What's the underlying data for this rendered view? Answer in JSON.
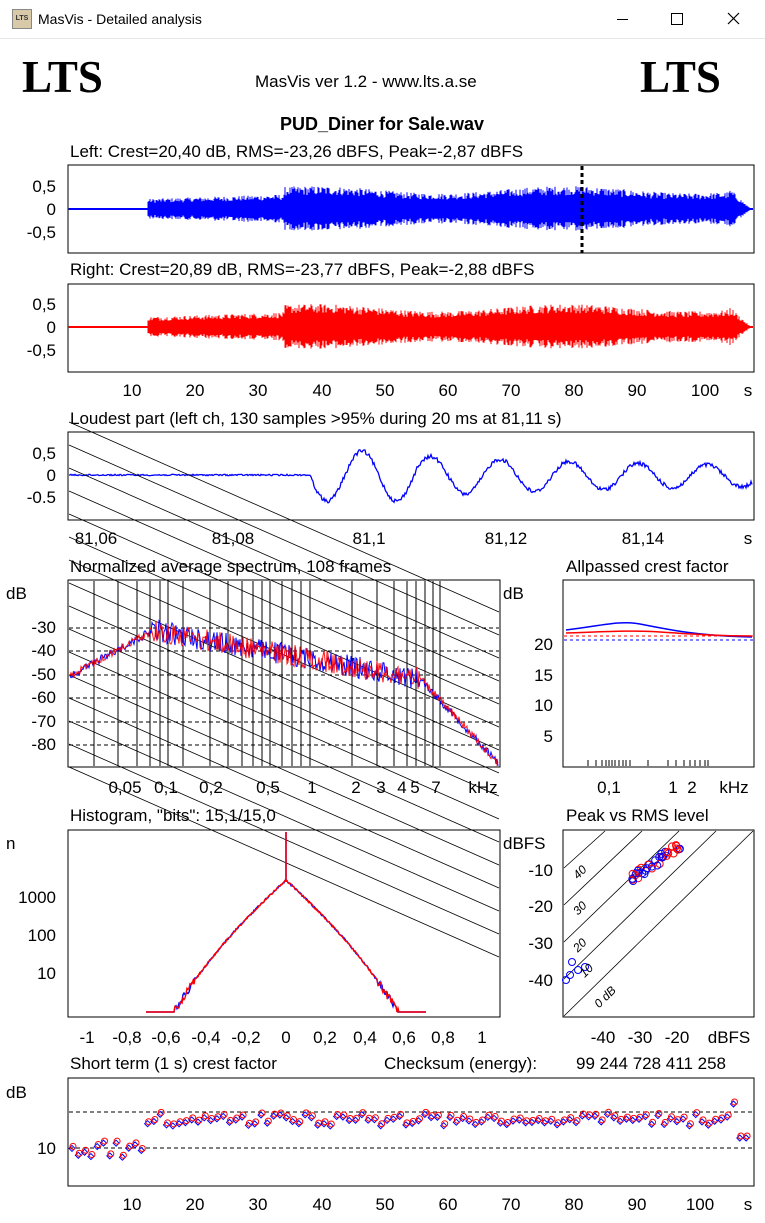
{
  "window": {
    "app_icon": "LTS",
    "title": "MasVis - Detailed analysis",
    "minimize_icon": "minimize-icon",
    "maximize_icon": "maximize-icon",
    "close_icon": "close-icon"
  },
  "header": {
    "logo_left": "LTS",
    "logo_right": "LTS",
    "version": "MasVis ver 1.2 - www.lts.a.se",
    "filename": "PUD_Diner for Sale.wav"
  },
  "left_channel": {
    "label": "Left: Crest=20,40 dB, RMS=-23,26 dBFS, Peak=-2,87 dBFS",
    "y_ticks": [
      "0,5",
      "0",
      "-0,5"
    ],
    "color": "#0000ff"
  },
  "right_channel": {
    "label": "Right: Crest=20,89 dB, RMS=-23,77 dBFS, Peak=-2,88 dBFS",
    "y_ticks": [
      "0,5",
      "0",
      "-0,5"
    ],
    "x_ticks": [
      "10",
      "20",
      "30",
      "40",
      "50",
      "60",
      "70",
      "80",
      "90",
      "100",
      "s"
    ],
    "color": "#ff0000"
  },
  "loudest": {
    "label": "Loudest part (left  ch, 130 samples >95% during 20 ms at 81,11 s)",
    "y_ticks": [
      "0,5",
      "0",
      "-0.5"
    ],
    "x_ticks": [
      "81,06",
      "81,08",
      "81,1",
      "81,12",
      "81,14",
      "s"
    ]
  },
  "spectrum": {
    "label": "Normalized average spectrum, 108 frames",
    "y_unit": "dB",
    "y_ticks": [
      "-30",
      "-40",
      "-50",
      "-60",
      "-70",
      "-80"
    ],
    "x_ticks": [
      "0,05",
      "0,1",
      "0,2",
      "0,5",
      "1",
      "2",
      "3",
      "4",
      "5",
      "7",
      "kHz"
    ]
  },
  "allpass": {
    "label": "Allpassed crest factor",
    "y_unit": "dB",
    "y_ticks": [
      "20",
      "15",
      "10",
      "5"
    ],
    "x_ticks": [
      "0,1",
      "1",
      "2",
      "kHz"
    ]
  },
  "histogram": {
    "label": "Histogram, \"bits\": 15,1/15,0",
    "y_unit": "n",
    "y_ticks": [
      "1000",
      "100",
      "10"
    ],
    "x_ticks": [
      "-1",
      "-0,8",
      "-0,6",
      "-0,4",
      "-0,2",
      "0",
      "0,2",
      "0,4",
      "0,6",
      "0,8",
      "1"
    ]
  },
  "peak_rms": {
    "label": "Peak vs RMS level",
    "y_unit": "dBFS",
    "y_ticks": [
      "-10",
      "-20",
      "-30",
      "-40"
    ],
    "x_ticks": [
      "-40",
      "-30",
      "-20",
      "dBFS"
    ],
    "diag_labels": [
      "40",
      "30",
      "20",
      "10",
      "0 dB"
    ]
  },
  "short_term": {
    "label": "Short term (1 s) crest factor",
    "checksum_label": "Checksum (energy):",
    "checksum_value": "99 244 728 411 258",
    "y_unit": "dB",
    "y_ticks": [
      "10"
    ],
    "x_ticks": [
      "10",
      "20",
      "30",
      "40",
      "50",
      "60",
      "70",
      "80",
      "90",
      "100",
      "s"
    ]
  }
}
